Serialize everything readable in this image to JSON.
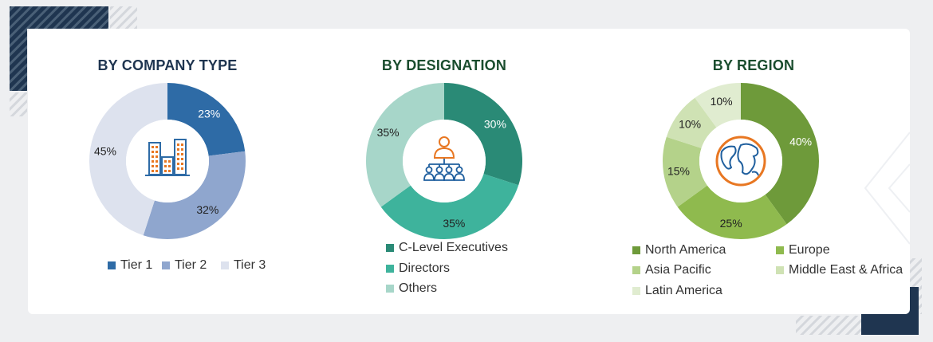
{
  "colors": {
    "title_navy": "#1f3550",
    "title_green": "#1a4d2e",
    "label_dark": "#222222",
    "label_light": "#ffffff"
  },
  "chart_data": [
    {
      "type": "pie",
      "title": "BY COMPANY TYPE",
      "icon": "buildings-icon",
      "title_color": "#1f3550",
      "slices": [
        {
          "label": "Tier 1",
          "value": 23,
          "display": "23%",
          "color": "#2e6ba6",
          "text_color": "#ffffff"
        },
        {
          "label": "Tier 2",
          "value": 32,
          "display": "32%",
          "color": "#8fa6ce",
          "text_color": "#222222"
        },
        {
          "label": "Tier 3",
          "value": 45,
          "display": "45%",
          "color": "#dde2ee",
          "text_color": "#222222"
        }
      ]
    },
    {
      "type": "pie",
      "title": "BY DESIGNATION",
      "icon": "team-hierarchy-icon",
      "title_color": "#1a4d2e",
      "slices": [
        {
          "label": "C-Level Executives",
          "value": 30,
          "display": "30%",
          "color": "#2a8a76",
          "text_color": "#ffffff"
        },
        {
          "label": "Directors",
          "value": 35,
          "display": "35%",
          "color": "#3eb39c",
          "text_color": "#222222"
        },
        {
          "label": "Others",
          "value": 35,
          "display": "35%",
          "color": "#a7d6c9",
          "text_color": "#222222"
        }
      ]
    },
    {
      "type": "pie",
      "title": "BY REGION",
      "icon": "globe-icon",
      "title_color": "#1a4d2e",
      "slices": [
        {
          "label": "North America",
          "value": 40,
          "display": "40%",
          "color": "#6e9a3a",
          "text_color": "#ffffff"
        },
        {
          "label": "Europe",
          "value": 25,
          "display": "25%",
          "color": "#8fba4e",
          "text_color": "#222222"
        },
        {
          "label": "Asia Pacific",
          "value": 15,
          "display": "15%",
          "color": "#b4d28a",
          "text_color": "#222222"
        },
        {
          "label": "Middle East & Africa",
          "value": 10,
          "display": "10%",
          "color": "#cfe2b4",
          "text_color": "#222222"
        },
        {
          "label": "Latin America",
          "value": 10,
          "display": "10%",
          "color": "#e0ecd0",
          "text_color": "#222222"
        }
      ]
    }
  ]
}
